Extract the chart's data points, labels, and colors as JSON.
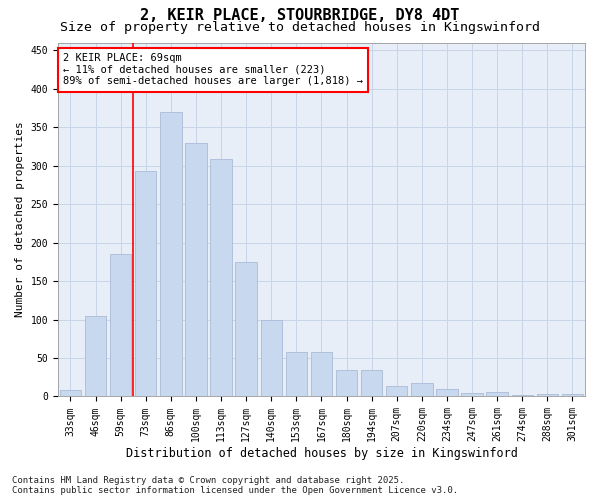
{
  "title1": "2, KEIR PLACE, STOURBRIDGE, DY8 4DT",
  "title2": "Size of property relative to detached houses in Kingswinford",
  "xlabel": "Distribution of detached houses by size in Kingswinford",
  "ylabel": "Number of detached properties",
  "categories": [
    "33sqm",
    "46sqm",
    "59sqm",
    "73sqm",
    "86sqm",
    "100sqm",
    "113sqm",
    "127sqm",
    "140sqm",
    "153sqm",
    "167sqm",
    "180sqm",
    "194sqm",
    "207sqm",
    "220sqm",
    "234sqm",
    "247sqm",
    "261sqm",
    "274sqm",
    "288sqm",
    "301sqm"
  ],
  "values": [
    8,
    105,
    185,
    293,
    370,
    330,
    308,
    175,
    100,
    58,
    58,
    35,
    35,
    13,
    17,
    10,
    5,
    6,
    2,
    3,
    3
  ],
  "bar_color": "#c8d8ee",
  "bar_edge_color": "#aabbd8",
  "vline_x": 2.5,
  "vline_color": "red",
  "annotation_text": "2 KEIR PLACE: 69sqm\n← 11% of detached houses are smaller (223)\n89% of semi-detached houses are larger (1,818) →",
  "annotation_box_color": "white",
  "annotation_box_edge": "red",
  "ylim": [
    0,
    460
  ],
  "yticks": [
    0,
    50,
    100,
    150,
    200,
    250,
    300,
    350,
    400,
    450
  ],
  "grid_color": "#c8d4e8",
  "bg_color": "#e8eef8",
  "footer1": "Contains HM Land Registry data © Crown copyright and database right 2025.",
  "footer2": "Contains public sector information licensed under the Open Government Licence v3.0.",
  "title1_fontsize": 11,
  "title2_fontsize": 9.5,
  "xlabel_fontsize": 8.5,
  "ylabel_fontsize": 8,
  "tick_fontsize": 7,
  "footer_fontsize": 6.5,
  "annot_fontsize": 7.5
}
